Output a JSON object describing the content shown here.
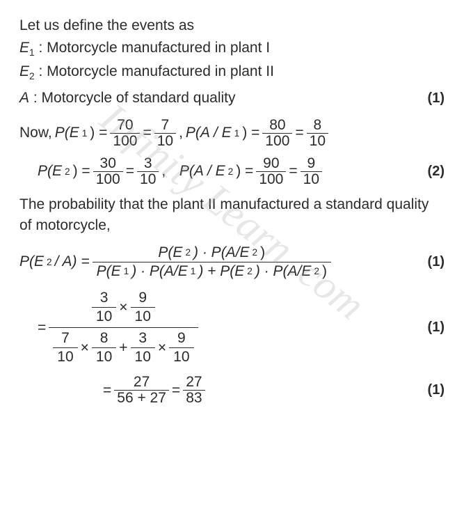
{
  "intro": "Let us define the events as",
  "e1": {
    "var": "E",
    "sub": "1",
    "desc": ": Motorcycle manufactured in plant I"
  },
  "e2": {
    "var": "E",
    "sub": "2",
    "desc": ": Motorcycle manufactured in plant II"
  },
  "a": {
    "var": "A",
    "desc": ": Motorcycle of standard quality"
  },
  "mark1": "(1)",
  "nowLabel": "Now, ",
  "pE1": {
    "lhs_var": "P(E",
    "lhs_sub": "1",
    "lhs_close": ") =",
    "n1": "70",
    "d1": "100",
    "eq": "=",
    "n2": "7",
    "d2": "10"
  },
  "pAE1": {
    "lhs": "P(A / E",
    "lhs_sub": "1",
    "lhs_close": ") =",
    "n1": "80",
    "d1": "100",
    "eq": "=",
    "n2": "8",
    "d2": "10"
  },
  "comma": ",",
  "pE2": {
    "lhs_var": "P(E",
    "lhs_sub": "2",
    "lhs_close": ") =",
    "n1": "30",
    "d1": "100",
    "eq": "=",
    "n2": "3",
    "d2": "10"
  },
  "pAE2": {
    "lhs": "P(A / E",
    "lhs_sub": "2",
    "lhs_close": ") =",
    "n1": "90",
    "d1": "100",
    "eq": "=",
    "n2": "9",
    "d2": "10"
  },
  "mark2": "(2)",
  "para": "The probability that the plant II manufactured a standard quality of motorcycle,",
  "bayes": {
    "lhs": "P(E",
    "lhs_sub": "2",
    "lhs_mid": "/ A) =",
    "num_a": "P(E",
    "num_a_sub": "2",
    "num_a_close": ") · P(A/E",
    "num_a_sub2": "2",
    "num_a_end": ")",
    "den_a": "P(E",
    "den_a_sub": "1",
    "den_a_close": ") · P(A/E",
    "den_a_sub2": "1",
    "den_mid": ") + P(E",
    "den_b_sub": "2",
    "den_b_close": ") · P(A/E",
    "den_b_sub2": "2",
    "den_end": ")"
  },
  "mark3": "(1)",
  "calc": {
    "eq": "=",
    "n_a_n": "3",
    "n_a_d": "10",
    "times": "×",
    "n_b_n": "9",
    "n_b_d": "10",
    "d_a_n": "7",
    "d_a_d": "10",
    "d_b_n": "8",
    "d_b_d": "10",
    "plus": "+",
    "d_c_n": "3",
    "d_c_d": "10",
    "d_d_n": "9",
    "d_d_d": "10"
  },
  "mark4": "(1)",
  "final": {
    "eq1": "=",
    "n1": "27",
    "d1": "56 + 27",
    "eq2": "=",
    "n2": "27",
    "d2": "83"
  },
  "mark5": "(1)",
  "watermark": "Infinity Learn .com",
  "style": {
    "text_color": "#2b2b2b",
    "background": "#ffffff",
    "watermark_color": "rgba(160,160,160,0.25)",
    "fontsize_body": 21,
    "fontsize_mark": 20
  }
}
